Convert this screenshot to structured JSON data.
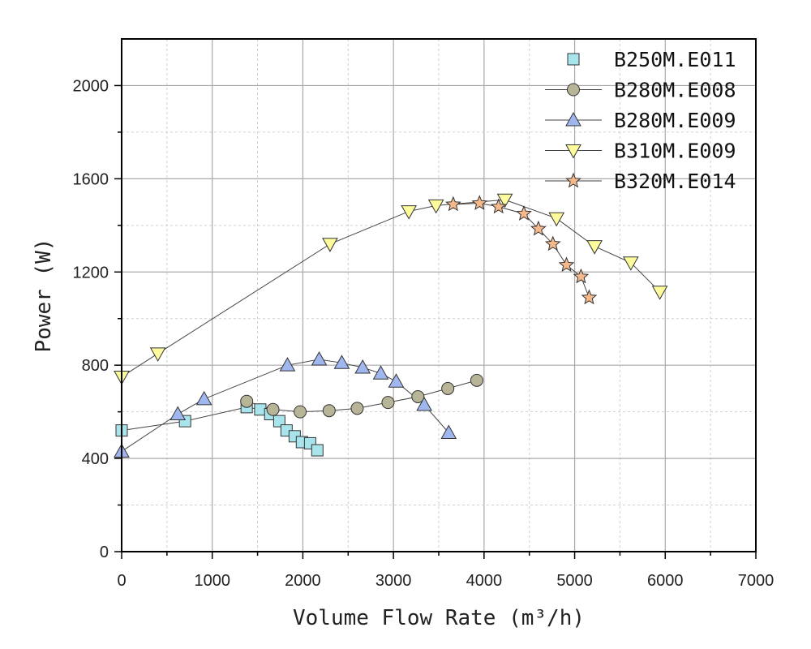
{
  "chart_data": {
    "type": "scatter",
    "title": "",
    "xlabel": "Volume Flow Rate (m³/h)",
    "ylabel": "Power (W)",
    "xlim": [
      0,
      7000
    ],
    "ylim": [
      0,
      2200
    ],
    "xticks": [
      0,
      1000,
      2000,
      3000,
      4000,
      5000,
      6000,
      7000
    ],
    "yticks": [
      0,
      400,
      800,
      1200,
      1600,
      2000
    ],
    "grid": true,
    "legend_position": "top-right",
    "series": [
      {
        "name": "B250M.E011",
        "marker": "square",
        "color": "#a8e4ec",
        "x": [
          0,
          700,
          1380,
          1530,
          1640,
          1740,
          1820,
          1910,
          1990,
          2080,
          2160
        ],
        "y": [
          520,
          560,
          620,
          610,
          590,
          560,
          520,
          495,
          470,
          465,
          435
        ]
      },
      {
        "name": "B280M.E008",
        "marker": "circle",
        "color": "#b8b497",
        "x": [
          1380,
          1670,
          1970,
          2290,
          2600,
          2940,
          3270,
          3600,
          3920
        ],
        "y": [
          645,
          610,
          600,
          605,
          615,
          640,
          665,
          700,
          735
        ]
      },
      {
        "name": "B280M.E009",
        "marker": "triangle-up",
        "color": "#9fb6ef",
        "x": [
          0,
          620,
          910,
          1830,
          2180,
          2430,
          2660,
          2860,
          3030,
          3340,
          3610
        ],
        "y": [
          430,
          590,
          655,
          800,
          825,
          810,
          790,
          765,
          730,
          630,
          510
        ]
      },
      {
        "name": "B310M.E009",
        "marker": "triangle-down",
        "color": "#fdfb9c",
        "x": [
          0,
          400,
          2300,
          3170,
          3470,
          4230,
          4800,
          5220,
          5620,
          5940
        ],
        "y": [
          750,
          850,
          1320,
          1460,
          1485,
          1510,
          1430,
          1310,
          1240,
          1115
        ]
      },
      {
        "name": "B320M.E014",
        "marker": "star",
        "color": "#f5b98c",
        "x": [
          3660,
          3950,
          4160,
          4440,
          4600,
          4760,
          4910,
          5070,
          5160
        ],
        "y": [
          1490,
          1495,
          1480,
          1450,
          1385,
          1320,
          1230,
          1180,
          1090
        ]
      }
    ]
  }
}
